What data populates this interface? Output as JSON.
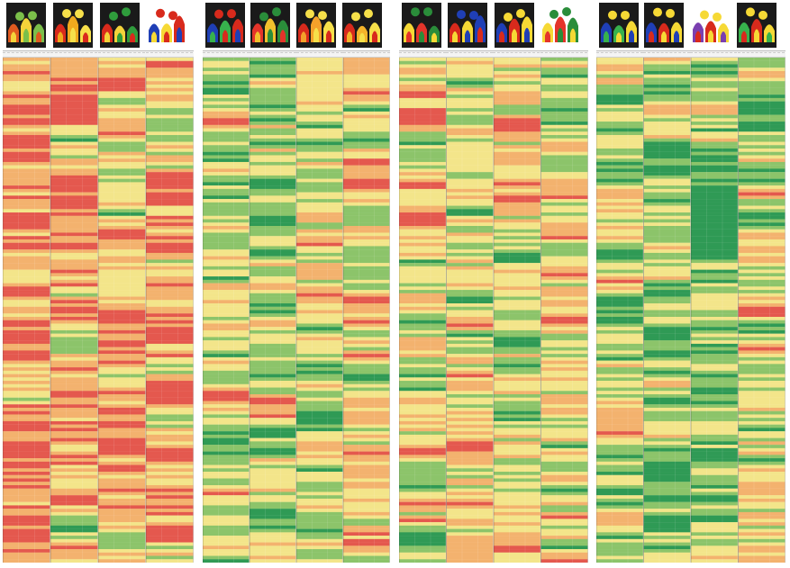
{
  "figure": {
    "description_panels": 4,
    "columns_per_panel": 4,
    "background": "#ffffff"
  },
  "panels": [
    {
      "thumbnails": [
        {
          "icon": "dotted-pattern-thumbnail",
          "colors": [
            "#1a1a1a",
            "#e05a1f",
            "#f4d33a",
            "#7bbf4a"
          ]
        },
        {
          "icon": "stacked-arch-thumbnail",
          "colors": [
            "#1a1a1a",
            "#d92a1c",
            "#f0a91e",
            "#f7e04a"
          ]
        },
        {
          "icon": "striped-block-thumbnail",
          "colors": [
            "#1a1a1a",
            "#d92a1c",
            "#f4d33a",
            "#2f9c3c"
          ]
        },
        {
          "icon": "framed-grid-thumbnail",
          "colors": [
            "#ffffff",
            "#1f3fb6",
            "#f6d935",
            "#d82a1c"
          ]
        }
      ],
      "color_bias": 0.72
    },
    {
      "thumbnails": [
        {
          "icon": "dome-contour-thumbnail",
          "colors": [
            "#1a1a1a",
            "#1f3fb6",
            "#37b24d",
            "#d82a1c"
          ]
        },
        {
          "icon": "central-peak-thumbnail",
          "colors": [
            "#1a1a1a",
            "#e4342a",
            "#f2c02d",
            "#2a8d3a"
          ]
        },
        {
          "icon": "large-dome-thumbnail",
          "colors": [
            "#1a1a1a",
            "#d82a1c",
            "#f4a12a",
            "#f6e04a"
          ]
        },
        {
          "icon": "multi-peak-thumbnail",
          "colors": [
            "#1a1a1a",
            "#d82a1c",
            "#f4b42a",
            "#f6e04a"
          ]
        }
      ],
      "color_bias": 0.48
    },
    {
      "thumbnails": [
        {
          "icon": "green-arch-thumbnail",
          "colors": [
            "#1a1a1a",
            "#f6d935",
            "#e4342a",
            "#2a8d3a"
          ]
        },
        {
          "icon": "red-yellow-stack-thumbnail",
          "colors": [
            "#1a1a1a",
            "#d82a1c",
            "#f6d935",
            "#1f3fb6"
          ]
        },
        {
          "icon": "blue-keyhole-thumbnail",
          "colors": [
            "#1a1a1a",
            "#1f3fb6",
            "#d82a1c",
            "#f6d935"
          ]
        },
        {
          "icon": "bright-arch-thumbnail",
          "colors": [
            "#ffffff",
            "#f6d935",
            "#e4342a",
            "#2a8d3a"
          ]
        }
      ],
      "color_bias": 0.52
    },
    {
      "thumbnails": [
        {
          "icon": "rainbow-dome-thumbnail",
          "colors": [
            "#1a1a1a",
            "#1f3fb6",
            "#37b24d",
            "#f6d935"
          ]
        },
        {
          "icon": "blue-tower-thumbnail",
          "colors": [
            "#1a1a1a",
            "#1f3fb6",
            "#d82a1c",
            "#f6d935"
          ]
        },
        {
          "icon": "white-ridge-thumbnail",
          "colors": [
            "#ffffff",
            "#7a3fb0",
            "#d82a1c",
            "#f6d935"
          ]
        },
        {
          "icon": "green-block-thumbnail",
          "colors": [
            "#1a1a1a",
            "#37b24d",
            "#d82a1c",
            "#f6d935"
          ]
        }
      ],
      "color_bias": 0.4
    }
  ],
  "chart_data": [
    {
      "type": "heatmap",
      "columns": 4,
      "rows": 150,
      "palette": [
        "#2f9a55",
        "#8cc46a",
        "#f3e58a",
        "#f3b26e",
        "#e4584e"
      ],
      "dominant": "red"
    },
    {
      "type": "heatmap",
      "columns": 4,
      "rows": 150,
      "palette": [
        "#2f9a55",
        "#8cc46a",
        "#f3e58a",
        "#f3b26e",
        "#e4584e"
      ],
      "dominant": "yellow"
    },
    {
      "type": "heatmap",
      "columns": 4,
      "rows": 150,
      "palette": [
        "#2f9a55",
        "#8cc46a",
        "#f3e58a",
        "#f3b26e",
        "#e4584e"
      ],
      "dominant": "yellow-red"
    },
    {
      "type": "heatmap",
      "columns": 4,
      "rows": 150,
      "palette": [
        "#2f9a55",
        "#8cc46a",
        "#f3e58a",
        "#f3b26e",
        "#e4584e"
      ],
      "dominant": "green-yellow"
    }
  ]
}
